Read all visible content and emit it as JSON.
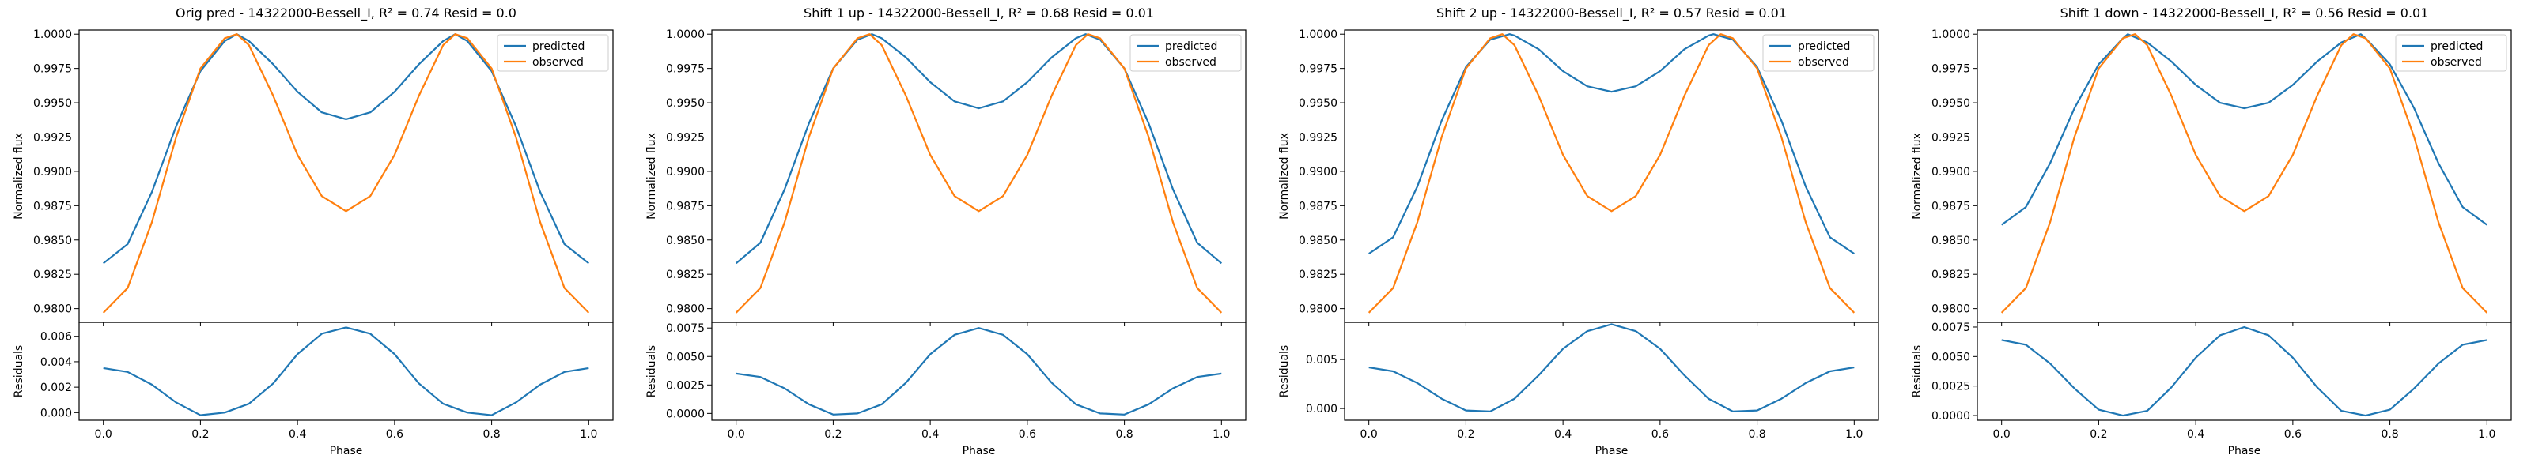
{
  "figure": {
    "background": "#ffffff"
  },
  "series_colors": {
    "predicted": "#1f77b4",
    "observed": "#ff7f0e"
  },
  "chart_data": [
    {
      "type": "line",
      "title": "Orig pred - 14322000-Bessell_I, R² = 0.74 Resid = 0.0",
      "xlabel": "Phase",
      "ylabel": "Normalized flux",
      "ylabel_resid": "Residuals",
      "xlim": [
        -0.05,
        1.05
      ],
      "xticks": [
        0.0,
        0.2,
        0.4,
        0.6,
        0.8,
        1.0
      ],
      "xtick_labels": [
        "0.0",
        "0.2",
        "0.4",
        "0.6",
        "0.8",
        "1.0"
      ],
      "ylim": [
        0.979,
        1.0003
      ],
      "yticks": [
        0.98,
        0.9825,
        0.985,
        0.9875,
        0.99,
        0.9925,
        0.995,
        0.9975,
        1.0
      ],
      "ytick_labels": [
        "0.9800",
        "0.9825",
        "0.9850",
        "0.9875",
        "0.9900",
        "0.9925",
        "0.9950",
        "0.9975",
        "1.0000"
      ],
      "ylim_resid": [
        -0.0006,
        0.0071
      ],
      "yticks_resid": [
        0.0,
        0.002,
        0.004,
        0.006
      ],
      "ytick_labels_resid": [
        "0.000",
        "0.002",
        "0.004",
        "0.006"
      ],
      "legend": {
        "position": "top-right",
        "entries": [
          "predicted",
          "observed"
        ]
      },
      "grid": false,
      "series": [
        {
          "name": "predicted",
          "color": "#1f77b4",
          "x": [
            0.0,
            0.05,
            0.1,
            0.15,
            0.2,
            0.25,
            0.275,
            0.3,
            0.35,
            0.4,
            0.45,
            0.5,
            0.55,
            0.6,
            0.65,
            0.7,
            0.725,
            0.75,
            0.8,
            0.85,
            0.9,
            0.95,
            1.0
          ],
          "y": [
            0.9833,
            0.9847,
            0.9885,
            0.9933,
            0.9973,
            0.9995,
            1.0,
            0.9995,
            0.9978,
            0.9958,
            0.9943,
            0.9938,
            0.9943,
            0.9958,
            0.9978,
            0.9995,
            1.0,
            0.9995,
            0.9973,
            0.9933,
            0.9885,
            0.9847,
            0.9833
          ]
        },
        {
          "name": "observed",
          "color": "#ff7f0e",
          "x": [
            0.0,
            0.05,
            0.1,
            0.15,
            0.2,
            0.25,
            0.275,
            0.3,
            0.35,
            0.4,
            0.45,
            0.5,
            0.55,
            0.6,
            0.65,
            0.7,
            0.725,
            0.75,
            0.8,
            0.85,
            0.9,
            0.95,
            1.0
          ],
          "y": [
            0.9797,
            0.9815,
            0.9863,
            0.9925,
            0.9975,
            0.9997,
            1.0,
            0.9992,
            0.9955,
            0.9912,
            0.9882,
            0.9871,
            0.9882,
            0.9912,
            0.9955,
            0.9992,
            1.0,
            0.9997,
            0.9975,
            0.9925,
            0.9863,
            0.9815,
            0.9797
          ]
        },
        {
          "name": "residuals",
          "panel": "residuals",
          "color": "#1f77b4",
          "x": [
            0.0,
            0.05,
            0.1,
            0.15,
            0.2,
            0.25,
            0.3,
            0.35,
            0.4,
            0.45,
            0.5,
            0.55,
            0.6,
            0.65,
            0.7,
            0.75,
            0.8,
            0.85,
            0.9,
            0.95,
            1.0
          ],
          "y": [
            0.0035,
            0.0032,
            0.0022,
            0.0008,
            -0.0002,
            0.0,
            0.0007,
            0.0023,
            0.0046,
            0.0062,
            0.0067,
            0.0062,
            0.0046,
            0.0023,
            0.0007,
            0.0,
            -0.0002,
            0.0008,
            0.0022,
            0.0032,
            0.0035
          ]
        }
      ]
    },
    {
      "type": "line",
      "title": "Shift 1 up - 14322000-Bessell_I, R² = 0.68 Resid = 0.01",
      "xlabel": "Phase",
      "ylabel": "Normalized flux",
      "ylabel_resid": "Residuals",
      "xlim": [
        -0.05,
        1.05
      ],
      "xticks": [
        0.0,
        0.2,
        0.4,
        0.6,
        0.8,
        1.0
      ],
      "xtick_labels": [
        "0.0",
        "0.2",
        "0.4",
        "0.6",
        "0.8",
        "1.0"
      ],
      "ylim": [
        0.979,
        1.0003
      ],
      "yticks": [
        0.98,
        0.9825,
        0.985,
        0.9875,
        0.99,
        0.9925,
        0.995,
        0.9975,
        1.0
      ],
      "ytick_labels": [
        "0.9800",
        "0.9825",
        "0.9850",
        "0.9875",
        "0.9900",
        "0.9925",
        "0.9950",
        "0.9975",
        "1.0000"
      ],
      "ylim_resid": [
        -0.0006,
        0.008
      ],
      "yticks_resid": [
        0.0,
        0.0025,
        0.005,
        0.0075
      ],
      "ytick_labels_resid": [
        "0.0000",
        "0.0025",
        "0.0050",
        "0.0075"
      ],
      "legend": {
        "position": "top-right",
        "entries": [
          "predicted",
          "observed"
        ]
      },
      "grid": false,
      "series": [
        {
          "name": "predicted",
          "color": "#1f77b4",
          "x": [
            0.0,
            0.05,
            0.1,
            0.15,
            0.2,
            0.25,
            0.28,
            0.3,
            0.35,
            0.4,
            0.45,
            0.5,
            0.55,
            0.6,
            0.65,
            0.7,
            0.72,
            0.75,
            0.8,
            0.85,
            0.9,
            0.95,
            1.0
          ],
          "y": [
            0.9833,
            0.9848,
            0.9887,
            0.9935,
            0.9975,
            0.9996,
            1.0,
            0.9997,
            0.9983,
            0.9965,
            0.9951,
            0.9946,
            0.9951,
            0.9965,
            0.9983,
            0.9997,
            1.0,
            0.9996,
            0.9975,
            0.9935,
            0.9887,
            0.9848,
            0.9833
          ]
        },
        {
          "name": "observed",
          "color": "#ff7f0e",
          "x": [
            0.0,
            0.05,
            0.1,
            0.15,
            0.2,
            0.25,
            0.275,
            0.3,
            0.35,
            0.4,
            0.45,
            0.5,
            0.55,
            0.6,
            0.65,
            0.7,
            0.725,
            0.75,
            0.8,
            0.85,
            0.9,
            0.95,
            1.0
          ],
          "y": [
            0.9797,
            0.9815,
            0.9863,
            0.9925,
            0.9975,
            0.9997,
            1.0,
            0.9992,
            0.9955,
            0.9912,
            0.9882,
            0.9871,
            0.9882,
            0.9912,
            0.9955,
            0.9992,
            1.0,
            0.9997,
            0.9975,
            0.9925,
            0.9863,
            0.9815,
            0.9797
          ]
        },
        {
          "name": "residuals",
          "panel": "residuals",
          "color": "#1f77b4",
          "x": [
            0.0,
            0.05,
            0.1,
            0.15,
            0.2,
            0.25,
            0.3,
            0.35,
            0.4,
            0.45,
            0.5,
            0.55,
            0.6,
            0.65,
            0.7,
            0.75,
            0.8,
            0.85,
            0.9,
            0.95,
            1.0
          ],
          "y": [
            0.0035,
            0.0032,
            0.0022,
            0.0008,
            -0.0001,
            0.0,
            0.0008,
            0.0027,
            0.0052,
            0.0069,
            0.0075,
            0.0069,
            0.0052,
            0.0027,
            0.0008,
            0.0,
            -0.0001,
            0.0008,
            0.0022,
            0.0032,
            0.0035
          ]
        }
      ]
    },
    {
      "type": "line",
      "title": "Shift 2 up - 14322000-Bessell_I, R² = 0.57 Resid = 0.01",
      "xlabel": "Phase",
      "ylabel": "Normalized flux",
      "ylabel_resid": "Residuals",
      "xlim": [
        -0.05,
        1.05
      ],
      "xticks": [
        0.0,
        0.2,
        0.4,
        0.6,
        0.8,
        1.0
      ],
      "xtick_labels": [
        "0.0",
        "0.2",
        "0.4",
        "0.6",
        "0.8",
        "1.0"
      ],
      "ylim": [
        0.979,
        1.0003
      ],
      "yticks": [
        0.98,
        0.9825,
        0.985,
        0.9875,
        0.99,
        0.9925,
        0.995,
        0.9975,
        1.0
      ],
      "ytick_labels": [
        "0.9800",
        "0.9825",
        "0.9850",
        "0.9875",
        "0.9900",
        "0.9925",
        "0.9950",
        "0.9975",
        "1.0000"
      ],
      "ylim_resid": [
        -0.0012,
        0.0088
      ],
      "yticks_resid": [
        0.0,
        0.005
      ],
      "ytick_labels_resid": [
        "0.000",
        "0.005"
      ],
      "legend": {
        "position": "top-right",
        "entries": [
          "predicted",
          "observed"
        ]
      },
      "grid": false,
      "series": [
        {
          "name": "predicted",
          "color": "#1f77b4",
          "x": [
            0.0,
            0.05,
            0.1,
            0.15,
            0.2,
            0.25,
            0.29,
            0.3,
            0.35,
            0.4,
            0.45,
            0.5,
            0.55,
            0.6,
            0.65,
            0.7,
            0.71,
            0.75,
            0.8,
            0.85,
            0.9,
            0.95,
            1.0
          ],
          "y": [
            0.984,
            0.9852,
            0.9889,
            0.9937,
            0.9976,
            0.9996,
            1.0,
            0.9999,
            0.9989,
            0.9973,
            0.9962,
            0.9958,
            0.9962,
            0.9973,
            0.9989,
            0.9999,
            1.0,
            0.9996,
            0.9976,
            0.9937,
            0.9889,
            0.9852,
            0.984
          ]
        },
        {
          "name": "observed",
          "color": "#ff7f0e",
          "x": [
            0.0,
            0.05,
            0.1,
            0.15,
            0.2,
            0.25,
            0.275,
            0.3,
            0.35,
            0.4,
            0.45,
            0.5,
            0.55,
            0.6,
            0.65,
            0.7,
            0.725,
            0.75,
            0.8,
            0.85,
            0.9,
            0.95,
            1.0
          ],
          "y": [
            0.9797,
            0.9815,
            0.9863,
            0.9925,
            0.9975,
            0.9997,
            1.0,
            0.9992,
            0.9955,
            0.9912,
            0.9882,
            0.9871,
            0.9882,
            0.9912,
            0.9955,
            0.9992,
            1.0,
            0.9997,
            0.9975,
            0.9925,
            0.9863,
            0.9815,
            0.9797
          ]
        },
        {
          "name": "residuals",
          "panel": "residuals",
          "color": "#1f77b4",
          "x": [
            0.0,
            0.05,
            0.1,
            0.15,
            0.2,
            0.25,
            0.3,
            0.35,
            0.4,
            0.45,
            0.5,
            0.55,
            0.6,
            0.65,
            0.7,
            0.75,
            0.8,
            0.85,
            0.9,
            0.95,
            1.0
          ],
          "y": [
            0.0042,
            0.0038,
            0.0026,
            0.001,
            -0.0002,
            -0.0003,
            0.001,
            0.0034,
            0.0061,
            0.0079,
            0.0086,
            0.0079,
            0.0061,
            0.0034,
            0.001,
            -0.0003,
            -0.0002,
            0.001,
            0.0026,
            0.0038,
            0.0042
          ]
        }
      ]
    },
    {
      "type": "line",
      "title": "Shift 1 down - 14322000-Bessell_I, R² = 0.56 Resid = 0.01",
      "xlabel": "Phase",
      "ylabel": "Normalized flux",
      "ylabel_resid": "Residuals",
      "xlim": [
        -0.05,
        1.05
      ],
      "xticks": [
        0.0,
        0.2,
        0.4,
        0.6,
        0.8,
        1.0
      ],
      "xtick_labels": [
        "0.0",
        "0.2",
        "0.4",
        "0.6",
        "0.8",
        "1.0"
      ],
      "ylim": [
        0.979,
        1.0003
      ],
      "yticks": [
        0.98,
        0.9825,
        0.985,
        0.9875,
        0.99,
        0.9925,
        0.995,
        0.9975,
        1.0
      ],
      "ytick_labels": [
        "0.9800",
        "0.9825",
        "0.9850",
        "0.9875",
        "0.9900",
        "0.9925",
        "0.9950",
        "0.9975",
        "1.0000"
      ],
      "ylim_resid": [
        -0.0004,
        0.0079
      ],
      "yticks_resid": [
        0.0,
        0.0025,
        0.005,
        0.0075
      ],
      "ytick_labels_resid": [
        "0.0000",
        "0.0025",
        "0.0050",
        "0.0075"
      ],
      "legend": {
        "position": "top-right",
        "entries": [
          "predicted",
          "observed"
        ]
      },
      "grid": false,
      "series": [
        {
          "name": "predicted",
          "color": "#1f77b4",
          "x": [
            0.0,
            0.05,
            0.1,
            0.15,
            0.2,
            0.25,
            0.26,
            0.3,
            0.35,
            0.4,
            0.45,
            0.5,
            0.55,
            0.6,
            0.65,
            0.7,
            0.74,
            0.75,
            0.8,
            0.85,
            0.9,
            0.95,
            1.0
          ],
          "y": [
            0.9861,
            0.9874,
            0.9906,
            0.9946,
            0.9978,
            0.9997,
            1.0,
            0.9994,
            0.998,
            0.9963,
            0.995,
            0.9946,
            0.995,
            0.9963,
            0.998,
            0.9994,
            1.0,
            0.9997,
            0.9978,
            0.9946,
            0.9906,
            0.9874,
            0.9861
          ]
        },
        {
          "name": "observed",
          "color": "#ff7f0e",
          "x": [
            0.0,
            0.05,
            0.1,
            0.15,
            0.2,
            0.25,
            0.275,
            0.3,
            0.35,
            0.4,
            0.45,
            0.5,
            0.55,
            0.6,
            0.65,
            0.7,
            0.725,
            0.75,
            0.8,
            0.85,
            0.9,
            0.95,
            1.0
          ],
          "y": [
            0.9797,
            0.9815,
            0.9863,
            0.9925,
            0.9975,
            0.9997,
            1.0,
            0.9992,
            0.9955,
            0.9912,
            0.9882,
            0.9871,
            0.9882,
            0.9912,
            0.9955,
            0.9992,
            1.0,
            0.9997,
            0.9975,
            0.9925,
            0.9863,
            0.9815,
            0.9797
          ]
        },
        {
          "name": "residuals",
          "panel": "residuals",
          "color": "#1f77b4",
          "x": [
            0.0,
            0.05,
            0.1,
            0.15,
            0.2,
            0.25,
            0.3,
            0.35,
            0.4,
            0.45,
            0.5,
            0.55,
            0.6,
            0.65,
            0.7,
            0.75,
            0.8,
            0.85,
            0.9,
            0.95,
            1.0
          ],
          "y": [
            0.0064,
            0.006,
            0.0044,
            0.0023,
            0.0005,
            0.0,
            0.0004,
            0.0024,
            0.0049,
            0.0068,
            0.0075,
            0.0068,
            0.0049,
            0.0024,
            0.0004,
            0.0,
            0.0005,
            0.0023,
            0.0044,
            0.006,
            0.0064
          ]
        }
      ]
    }
  ]
}
